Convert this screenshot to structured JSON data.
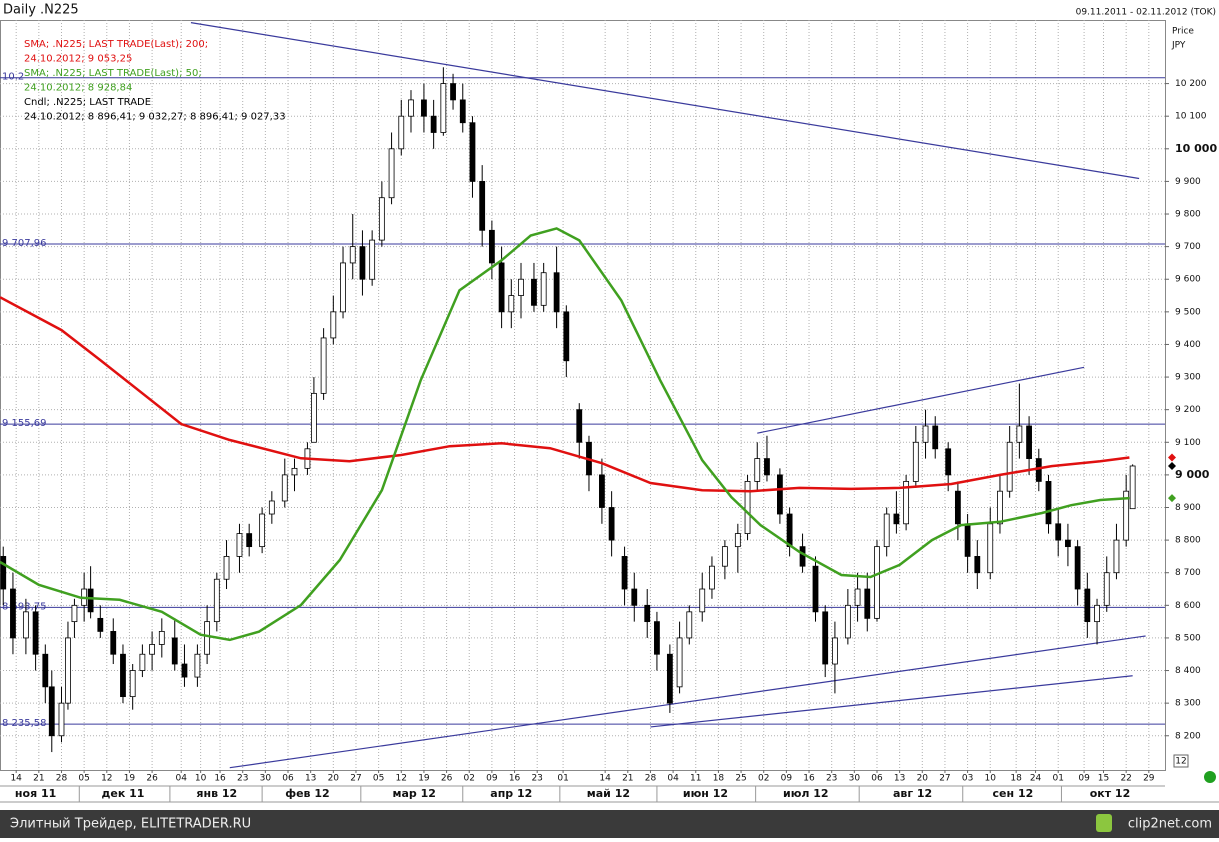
{
  "header": {
    "title": "Daily .N225",
    "range": "09.11.2011 - 02.11.2012 (TOK)"
  },
  "chart_data": {
    "type": "candlestick",
    "axis_title": "Price",
    "axis_unit": "JPY",
    "candle_name": "Cndl; .N225; LAST TRADE",
    "candle_label": "24.10.2012; 8 896,41; 9 032,27; 8 896,41; 9 027,33",
    "up_color": "#ffffff",
    "down_color": "#000000",
    "x": [
      1,
      4,
      8,
      11,
      14,
      16,
      19,
      21,
      23,
      26,
      28,
      31,
      35,
      38,
      41,
      44,
      47,
      50,
      54,
      57,
      61,
      64,
      67,
      70,
      74,
      77,
      81,
      84,
      88,
      91,
      95,
      97,
      100,
      103,
      106,
      109,
      112,
      115,
      118,
      121,
      124,
      127,
      131,
      134,
      137,
      140,
      143,
      146,
      149,
      152,
      155,
      158,
      161,
      165,
      168,
      172,
      175,
      179,
      182,
      186,
      189,
      193,
      196,
      200,
      203,
      207,
      210,
      213,
      217,
      220,
      224,
      228,
      231,
      234,
      237,
      241,
      244,
      248,
      252,
      255,
      258,
      262,
      265,
      268,
      271,
      274,
      277,
      280,
      283,
      286,
      289,
      293,
      296,
      299,
      302,
      306,
      309,
      312,
      315,
      318,
      321,
      324,
      327,
      330,
      333,
      336,
      339,
      342,
      345,
      348,
      350
    ],
    "open": [
      8750,
      8650,
      8500,
      8580,
      8450,
      8350,
      8200,
      8300,
      8550,
      8600,
      8650,
      8560,
      8520,
      8450,
      8320,
      8400,
      8450,
      8480,
      8500,
      8420,
      8380,
      8450,
      8550,
      8680,
      8750,
      8820,
      8780,
      8880,
      8920,
      9000,
      9020,
      9100,
      9250,
      9420,
      9500,
      9650,
      9700,
      9600,
      9720,
      9850,
      10000,
      10100,
      10150,
      10100,
      10050,
      10200,
      10150,
      10080,
      9900,
      9750,
      9650,
      9500,
      9550,
      9600,
      9520,
      9620,
      9500,
      9200,
      9100,
      9000,
      8900,
      8750,
      8650,
      8600,
      8550,
      8450,
      8350,
      8500,
      8580,
      8650,
      8720,
      8780,
      8820,
      8980,
      9050,
      9000,
      8880,
      8780,
      8720,
      8580,
      8420,
      8500,
      8600,
      8650,
      8560,
      8780,
      8880,
      8850,
      8980,
      9100,
      9150,
      9080,
      8950,
      8850,
      8750,
      8700,
      8850,
      8950,
      9100,
      9150,
      9050,
      8980,
      8850,
      8800,
      8780,
      8650,
      8550,
      8600,
      8700,
      8800,
      8896.41
    ],
    "high": [
      8780,
      8700,
      8620,
      8600,
      8480,
      8400,
      8350,
      8550,
      8620,
      8700,
      8720,
      8600,
      8560,
      8480,
      8420,
      8480,
      8520,
      8560,
      8560,
      8480,
      8480,
      8600,
      8700,
      8800,
      8850,
      8850,
      8900,
      8950,
      9050,
      9050,
      9100,
      9300,
      9450,
      9550,
      9700,
      9800,
      9750,
      9750,
      9900,
      10050,
      10150,
      10180,
      10200,
      10150,
      10250,
      10230,
      10200,
      10100,
      9950,
      9780,
      9700,
      9600,
      9650,
      9650,
      9650,
      9700,
      9520,
      9220,
      9120,
      9050,
      8950,
      8780,
      8700,
      8650,
      8580,
      8480,
      8550,
      8600,
      8700,
      8750,
      8800,
      8850,
      9000,
      9100,
      9120,
      9020,
      8900,
      8820,
      8750,
      8600,
      8550,
      8650,
      8700,
      8700,
      8800,
      8900,
      8950,
      9000,
      9150,
      9200,
      9180,
      9100,
      8980,
      8880,
      8800,
      8900,
      9000,
      9150,
      9280,
      9180,
      9080,
      9000,
      8900,
      8850,
      8800,
      8700,
      8620,
      8750,
      8850,
      9000,
      9032.27
    ],
    "low": [
      8600,
      8450,
      8450,
      8400,
      8300,
      8150,
      8180,
      8280,
      8500,
      8550,
      8560,
      8500,
      8420,
      8300,
      8280,
      8380,
      8400,
      8440,
      8400,
      8350,
      8350,
      8420,
      8520,
      8650,
      8700,
      8750,
      8760,
      8850,
      8900,
      8950,
      9000,
      9100,
      9230,
      9400,
      9480,
      9600,
      9550,
      9580,
      9700,
      9830,
      9980,
      10050,
      10050,
      10000,
      10040,
      10120,
      10050,
      9850,
      9700,
      9600,
      9450,
      9450,
      9480,
      9500,
      9500,
      9450,
      9300,
      9050,
      8950,
      8850,
      8750,
      8600,
      8550,
      8500,
      8400,
      8270,
      8330,
      8480,
      8550,
      8620,
      8680,
      8700,
      8800,
      8950,
      8980,
      8850,
      8750,
      8700,
      8550,
      8380,
      8330,
      8480,
      8550,
      8520,
      8550,
      8750,
      8820,
      8830,
      8960,
      9050,
      9050,
      8950,
      8800,
      8700,
      8650,
      8680,
      8820,
      8930,
      9050,
      9000,
      8950,
      8820,
      8750,
      8720,
      8600,
      8500,
      8480,
      8580,
      8680,
      8780,
      8896.41
    ],
    "close": [
      8650,
      8500,
      8580,
      8450,
      8350,
      8200,
      8300,
      8500,
      8600,
      8650,
      8580,
      8520,
      8450,
      8320,
      8400,
      8450,
      8480,
      8520,
      8420,
      8380,
      8450,
      8550,
      8680,
      8750,
      8820,
      8780,
      8880,
      8920,
      9000,
      9020,
      9080,
      9250,
      9420,
      9500,
      9650,
      9700,
      9600,
      9720,
      9850,
      10000,
      10100,
      10150,
      10100,
      10050,
      10200,
      10150,
      10080,
      9900,
      9750,
      9650,
      9500,
      9550,
      9600,
      9520,
      9620,
      9500,
      9350,
      9100,
      9000,
      8900,
      8800,
      8650,
      8600,
      8550,
      8450,
      8300,
      8500,
      8580,
      8650,
      8720,
      8780,
      8820,
      8980,
      9050,
      9000,
      8880,
      8780,
      8720,
      8580,
      8420,
      8500,
      8600,
      8650,
      8560,
      8780,
      8880,
      8850,
      8980,
      9100,
      9150,
      9080,
      9000,
      8850,
      8750,
      8700,
      8850,
      8950,
      9100,
      9150,
      9050,
      8980,
      8850,
      8800,
      8780,
      8650,
      8550,
      8600,
      8700,
      8800,
      8950,
      9027.33
    ],
    "series": [
      {
        "name": "SMA; .N225; LAST TRADE(Last); 200;",
        "last_label": "24.10.2012; 9 053,25",
        "color": "#e01010",
        "x": [
          0,
          19,
          31,
          56,
          71,
          93,
          108,
          124,
          139,
          155,
          170,
          186,
          201,
          217,
          232,
          247,
          263,
          278,
          294,
          309,
          325,
          340,
          349
        ],
        "values": [
          9545,
          9444,
          9352,
          9156,
          9107,
          9051,
          9042,
          9061,
          9088,
          9097,
          9082,
          9036,
          8975,
          8953,
          8950,
          8960,
          8957,
          8960,
          8972,
          9000,
          9027,
          9042,
          9053.25
        ]
      },
      {
        "name": "SMA; .N225; LAST TRADE(Last); 50;",
        "last_label": "24.10.2012; 8 928,84",
        "color": "#40a020",
        "x": [
          0,
          12,
          25,
          37,
          50,
          62,
          71,
          80,
          93,
          105,
          118,
          130,
          142,
          155,
          164,
          172,
          179,
          192,
          204,
          217,
          226,
          235,
          247,
          260,
          269,
          278,
          288,
          297,
          309,
          322,
          331,
          340,
          349
        ],
        "values": [
          8733,
          8663,
          8623,
          8617,
          8580,
          8510,
          8494,
          8519,
          8601,
          8739,
          8953,
          9290,
          9566,
          9658,
          9734,
          9756,
          9719,
          9535,
          9290,
          9045,
          8932,
          8846,
          8764,
          8693,
          8687,
          8724,
          8800,
          8846,
          8856,
          8883,
          8907,
          8923,
          8928.84
        ]
      }
    ],
    "levels": [
      {
        "value": 10218,
        "label": "10.2"
      },
      {
        "value": 9707.96,
        "label": "9 707,96"
      },
      {
        "value": 9155.69,
        "label": "9 155,69"
      },
      {
        "value": 8593.75,
        "label": "8 593,75"
      },
      {
        "value": 8235.58,
        "label": "8 235,58"
      }
    ],
    "level_color": "#3a3a9c",
    "trend_lines": [
      {
        "x": [
          59,
          352
        ],
        "values": [
          10387,
          9909
        ]
      },
      {
        "x": [
          71,
          354
        ],
        "values": [
          8102,
          8506
        ]
      },
      {
        "x": [
          201,
          350
        ],
        "values": [
          8227,
          8384
        ]
      },
      {
        "x": [
          234,
          335
        ],
        "values": [
          9128,
          9330
        ]
      }
    ],
    "xlim": [
      0,
      360
    ],
    "ylim": [
      8095,
      10395
    ],
    "grid": true,
    "xticks": [
      {
        "value": 5,
        "label": "14"
      },
      {
        "value": 12,
        "label": "21"
      },
      {
        "value": 19,
        "label": "28"
      },
      {
        "value": 26,
        "label": "05"
      },
      {
        "value": 33,
        "label": "12"
      },
      {
        "value": 40,
        "label": "19"
      },
      {
        "value": 47,
        "label": "26"
      },
      {
        "value": 56,
        "label": "04"
      },
      {
        "value": 62,
        "label": "10"
      },
      {
        "value": 68,
        "label": "16"
      },
      {
        "value": 75,
        "label": "23"
      },
      {
        "value": 82,
        "label": "30"
      },
      {
        "value": 89,
        "label": "06"
      },
      {
        "value": 96,
        "label": "13"
      },
      {
        "value": 103,
        "label": "20"
      },
      {
        "value": 110,
        "label": "27"
      },
      {
        "value": 117,
        "label": "05"
      },
      {
        "value": 124,
        "label": "12"
      },
      {
        "value": 131,
        "label": "19"
      },
      {
        "value": 138,
        "label": "26"
      },
      {
        "value": 145,
        "label": "02"
      },
      {
        "value": 152,
        "label": "09"
      },
      {
        "value": 159,
        "label": "16"
      },
      {
        "value": 166,
        "label": "23"
      },
      {
        "value": 174,
        "label": "01"
      },
      {
        "value": 187,
        "label": "14"
      },
      {
        "value": 194,
        "label": "21"
      },
      {
        "value": 201,
        "label": "28"
      },
      {
        "value": 208,
        "label": "04"
      },
      {
        "value": 215,
        "label": "11"
      },
      {
        "value": 222,
        "label": "18"
      },
      {
        "value": 229,
        "label": "25"
      },
      {
        "value": 236,
        "label": "02"
      },
      {
        "value": 243,
        "label": "09"
      },
      {
        "value": 250,
        "label": "16"
      },
      {
        "value": 257,
        "label": "23"
      },
      {
        "value": 264,
        "label": "30"
      },
      {
        "value": 271,
        "label": "06"
      },
      {
        "value": 278,
        "label": "13"
      },
      {
        "value": 285,
        "label": "20"
      },
      {
        "value": 292,
        "label": "27"
      },
      {
        "value": 299,
        "label": "03"
      },
      {
        "value": 306,
        "label": "10"
      },
      {
        "value": 314,
        "label": "18"
      },
      {
        "value": 320,
        "label": "24"
      },
      {
        "value": 327,
        "label": "01"
      },
      {
        "value": 335,
        "label": "09"
      },
      {
        "value": 341,
        "label": "15"
      },
      {
        "value": 348,
        "label": "22"
      },
      {
        "value": 355,
        "label": "29"
      }
    ],
    "month_labels": [
      {
        "value": 11,
        "label": "ноя 11"
      },
      {
        "value": 38,
        "label": "дек 11"
      },
      {
        "value": 67,
        "label": "янв 12"
      },
      {
        "value": 95,
        "label": "фев 12"
      },
      {
        "value": 128,
        "label": "мар 12"
      },
      {
        "value": 158,
        "label": "апр 12"
      },
      {
        "value": 188,
        "label": "май 12"
      },
      {
        "value": 218,
        "label": "июн 12"
      },
      {
        "value": 249,
        "label": "июл 12"
      },
      {
        "value": 282,
        "label": "авг 12"
      },
      {
        "value": 313,
        "label": "сен 12"
      },
      {
        "value": 343,
        "label": "окт 12"
      }
    ],
    "yticks": [
      {
        "value": 8200,
        "label": "8 200"
      },
      {
        "value": 8300,
        "label": "8 300"
      },
      {
        "value": 8400,
        "label": "8 400"
      },
      {
        "value": 8500,
        "label": "8 500"
      },
      {
        "value": 8600,
        "label": "8 600"
      },
      {
        "value": 8700,
        "label": "8 700"
      },
      {
        "value": 8800,
        "label": "8 800"
      },
      {
        "value": 8900,
        "label": "8 900"
      },
      {
        "value": 9000,
        "label": "9 000"
      },
      {
        "value": 9100,
        "label": "9 100"
      },
      {
        "value": 9200,
        "label": "9 200"
      },
      {
        "value": 9300,
        "label": "9 300"
      },
      {
        "value": 9400,
        "label": "9 400"
      },
      {
        "value": 9500,
        "label": "9 500"
      },
      {
        "value": 9600,
        "label": "9 600"
      },
      {
        "value": 9700,
        "label": "9 700"
      },
      {
        "value": 9800,
        "label": "9 800"
      },
      {
        "value": 9900,
        "label": "9 900"
      },
      {
        "value": 10000,
        "label": "10 000"
      },
      {
        "value": 10100,
        "label": "10 100"
      },
      {
        "value": 10200,
        "label": "10 200"
      }
    ],
    "page_label": "12"
  },
  "footer": {
    "left": "Элитный Трейдер, ELITETRADER.RU",
    "right": "clip2net.com"
  }
}
